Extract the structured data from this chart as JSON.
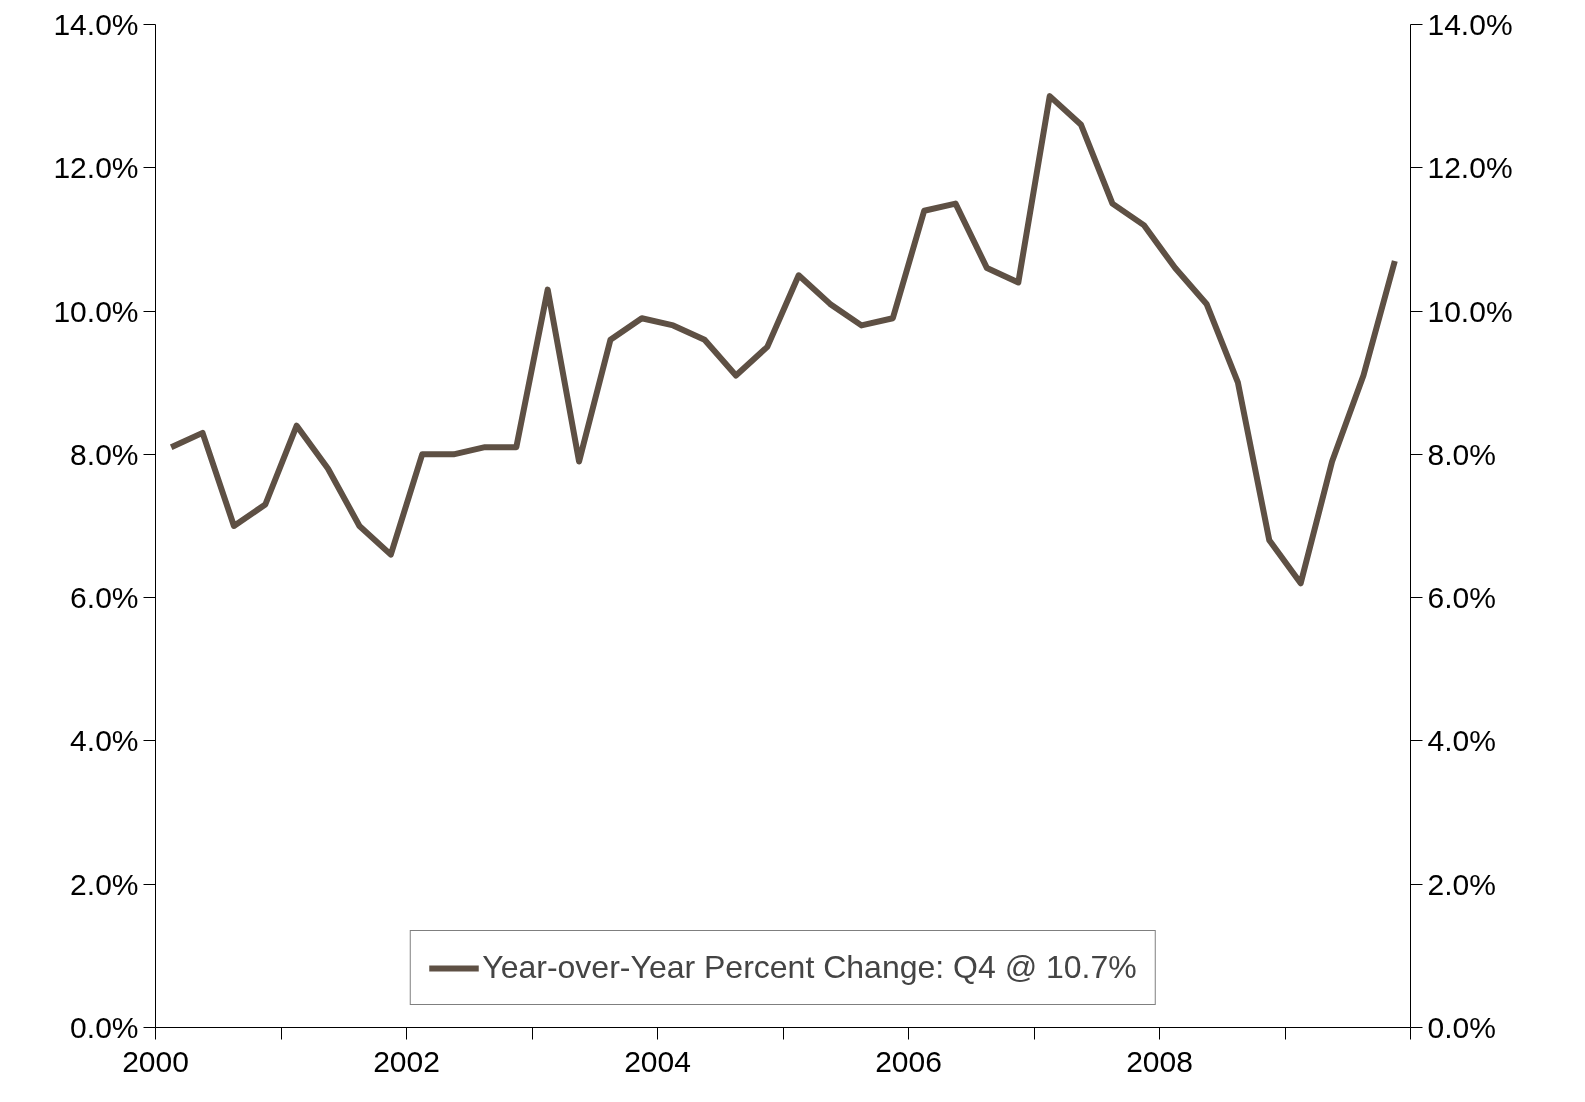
{
  "chart_data": {
    "type": "line",
    "x": [
      2000.125,
      2000.375,
      2000.625,
      2000.875,
      2001.125,
      2001.375,
      2001.625,
      2001.875,
      2002.125,
      2002.375,
      2002.625,
      2002.875,
      2003.125,
      2003.375,
      2003.625,
      2003.875,
      2004.125,
      2004.375,
      2004.625,
      2004.875,
      2005.125,
      2005.375,
      2005.625,
      2005.875,
      2006.125,
      2006.375,
      2006.625,
      2006.875,
      2007.125,
      2007.375,
      2007.625,
      2007.875,
      2008.125,
      2008.375,
      2008.625,
      2008.875,
      2009.125,
      2009.375,
      2009.625,
      2009.875
    ],
    "series": [
      {
        "name": "Year-over-Year Percent Change: Q4 @ 10.7%",
        "color": "#5e5044",
        "values": [
          8.1,
          8.3,
          7.0,
          7.3,
          8.4,
          7.8,
          7.0,
          6.6,
          8.0,
          8.0,
          8.1,
          8.1,
          10.3,
          7.9,
          9.6,
          9.9,
          9.8,
          9.6,
          9.1,
          9.5,
          10.5,
          10.1,
          9.8,
          9.9,
          11.4,
          11.5,
          10.6,
          10.4,
          13.0,
          12.6,
          11.5,
          11.2,
          10.6,
          10.1,
          9.0,
          6.8,
          6.2,
          7.9,
          9.1,
          10.7
        ]
      }
    ],
    "xlim": [
      2000,
      2010
    ],
    "xticks": [
      {
        "value": 2000,
        "label": "2000"
      },
      {
        "value": 2001,
        "label": null
      },
      {
        "value": 2002,
        "label": "2002"
      },
      {
        "value": 2003,
        "label": null
      },
      {
        "value": 2004,
        "label": "2004"
      },
      {
        "value": 2005,
        "label": null
      },
      {
        "value": 2006,
        "label": "2006"
      },
      {
        "value": 2007,
        "label": null
      },
      {
        "value": 2008,
        "label": "2008"
      },
      {
        "value": 2009,
        "label": null
      },
      {
        "value": 2010,
        "label": null
      }
    ],
    "ylim": [
      0,
      14
    ],
    "yticks": [
      {
        "value": 0,
        "label": "0.0%"
      },
      {
        "value": 2,
        "label": "2.0%"
      },
      {
        "value": 4,
        "label": "4.0%"
      },
      {
        "value": 6,
        "label": "6.0%"
      },
      {
        "value": 8,
        "label": "8.0%"
      },
      {
        "value": 10,
        "label": "10.0%"
      },
      {
        "value": 12,
        "label": "12.0%"
      },
      {
        "value": 14,
        "label": "14.0%"
      }
    ],
    "y2lim": [
      0,
      14
    ],
    "y2ticks": [
      {
        "value": 0,
        "label": "0.0%"
      },
      {
        "value": 2,
        "label": "2.0%"
      },
      {
        "value": 4,
        "label": "4.0%"
      },
      {
        "value": 6,
        "label": "6.0%"
      },
      {
        "value": 8,
        "label": "8.0%"
      },
      {
        "value": 10,
        "label": "10.0%"
      },
      {
        "value": 12,
        "label": "12.0%"
      },
      {
        "value": 14,
        "label": "14.0%"
      }
    ],
    "grid": false,
    "legend": "bottom",
    "marker": "none",
    "line_style": "solid"
  }
}
